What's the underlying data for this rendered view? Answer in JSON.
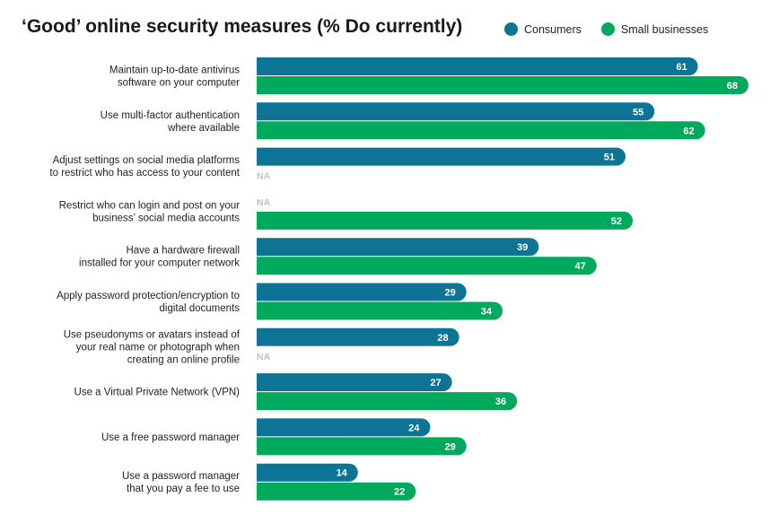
{
  "chart_data": {
    "type": "bar",
    "orientation": "horizontal",
    "title": "‘Good’ online security measures (% Do currently)",
    "xlim": [
      0,
      68
    ],
    "categories": [
      [
        "Maintain up-to-date antivirus",
        "software on your computer"
      ],
      [
        "Use multi-factor authentication",
        "where available"
      ],
      [
        "Adjust settings on social media platforms",
        "to restrict who has access to your content"
      ],
      [
        "Restrict who can login and post on your",
        "business’ social media accounts"
      ],
      [
        "Have a hardware firewall",
        "installed for your computer network"
      ],
      [
        "Apply password protection/encryption to",
        "digital documents"
      ],
      [
        "Use pseudonyms or avatars instead of",
        "your real name or photograph when",
        "creating an online profile"
      ],
      [
        "Use a Virtual Private Network (VPN)"
      ],
      [
        "Use a free password manager"
      ],
      [
        "Use a password manager",
        "that you pay a fee to use"
      ]
    ],
    "series": [
      {
        "name": "Consumers",
        "color": "#0e7495",
        "values": [
          61,
          55,
          51,
          null,
          39,
          29,
          28,
          27,
          24,
          14
        ]
      },
      {
        "name": "Small businesses",
        "color": "#00a95c",
        "values": [
          68,
          62,
          null,
          52,
          47,
          34,
          null,
          36,
          29,
          22
        ]
      }
    ],
    "missing_label": "NA",
    "legend_position": "top-right"
  }
}
